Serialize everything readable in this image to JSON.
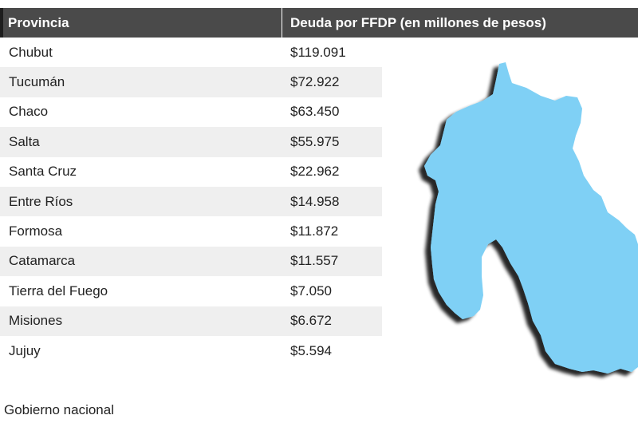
{
  "table": {
    "headers": [
      "Provincia",
      "Deuda por FFDP (en millones de pesos)"
    ],
    "rows": [
      {
        "provincia": "Chubut",
        "deuda": "$119.091"
      },
      {
        "provincia": "Tucumán",
        "deuda": "$72.922"
      },
      {
        "provincia": "Chaco",
        "deuda": "$63.450"
      },
      {
        "provincia": "Salta",
        "deuda": "$55.975"
      },
      {
        "provincia": "Santa Cruz",
        "deuda": "$22.962"
      },
      {
        "provincia": "Entre Ríos",
        "deuda": "$14.958"
      },
      {
        "provincia": "Formosa",
        "deuda": "$11.872"
      },
      {
        "provincia": "Catamarca",
        "deuda": "$11.557"
      },
      {
        "provincia": "Tierra del Fuego",
        "deuda": "$7.050"
      },
      {
        "provincia": "Misiones",
        "deuda": "$6.672"
      },
      {
        "provincia": "Jujuy",
        "deuda": "$5.594"
      }
    ]
  },
  "footer": {
    "text": "Gobierno nacional"
  },
  "map": {
    "fill_color": "#7fd0f5",
    "shadow_color": "#222222",
    "icon": "jujuy-province-map-icon"
  },
  "colors": {
    "header_bg": "#4a4a4a",
    "row_alt_bg": "#efefef",
    "text": "#222222"
  }
}
